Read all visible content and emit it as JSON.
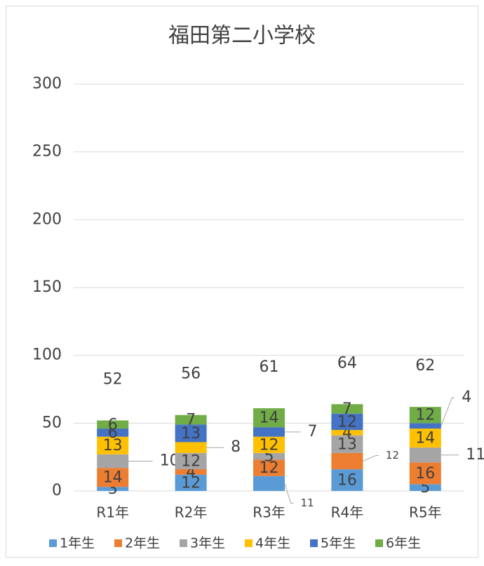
{
  "chart_data": {
    "type": "stacked_bar",
    "title": "福田第二小学校",
    "categories": [
      "R1年",
      "R2年",
      "R3年",
      "R4年",
      "R5年"
    ],
    "series": [
      {
        "name": "1年生",
        "color": "#5b9bd5",
        "values": [
          3,
          12,
          11,
          16,
          5
        ]
      },
      {
        "name": "2年生",
        "color": "#ed7d31",
        "values": [
          14,
          4,
          12,
          12,
          16
        ]
      },
      {
        "name": "3年生",
        "color": "#a5a5a5",
        "values": [
          10,
          12,
          5,
          13,
          11
        ]
      },
      {
        "name": "4年生",
        "color": "#ffc000",
        "values": [
          13,
          8,
          12,
          4,
          14
        ]
      },
      {
        "name": "5年生",
        "color": "#4472c4",
        "values": [
          6,
          13,
          7,
          12,
          4
        ]
      },
      {
        "name": "6年生",
        "color": "#70ad47",
        "values": [
          6,
          7,
          14,
          7,
          12
        ]
      }
    ],
    "totals": [
      52,
      56,
      61,
      64,
      62
    ],
    "ylim": [
      0,
      300
    ],
    "yticks": [
      0,
      50,
      100,
      150,
      200,
      250,
      300
    ],
    "grid": true,
    "legend": "bottom"
  }
}
